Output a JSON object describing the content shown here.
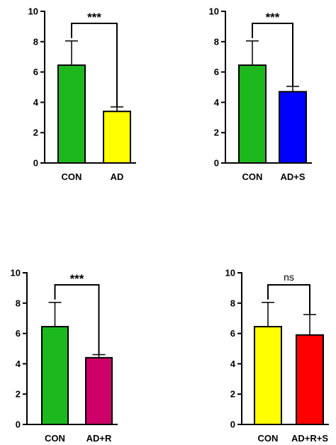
{
  "chart_data": [
    {
      "type": "bar",
      "categories": [
        "CON",
        "AD"
      ],
      "values": [
        6.45,
        3.4
      ],
      "errors": [
        1.6,
        0.3
      ],
      "colors": [
        "#1db81d",
        "#ffff00"
      ],
      "ylim": [
        0,
        10
      ],
      "yticks": [
        "0",
        "2",
        "4",
        "6",
        "8",
        "10"
      ],
      "significance": "***"
    },
    {
      "type": "bar",
      "categories": [
        "CON",
        "AD+S"
      ],
      "values": [
        6.45,
        4.7
      ],
      "errors": [
        1.6,
        0.35
      ],
      "colors": [
        "#1db81d",
        "#0000ff"
      ],
      "ylim": [
        0,
        10
      ],
      "yticks": [
        "0",
        "2",
        "4",
        "6",
        "8",
        "10"
      ],
      "significance": "***"
    },
    {
      "type": "bar",
      "categories": [
        "CON",
        "AD+R"
      ],
      "values": [
        6.45,
        4.4
      ],
      "errors": [
        1.6,
        0.2
      ],
      "colors": [
        "#1db81d",
        "#cc0066"
      ],
      "ylim": [
        0,
        10
      ],
      "yticks": [
        "0",
        "2",
        "4",
        "6",
        "8",
        "10"
      ],
      "significance": "***"
    },
    {
      "type": "bar",
      "categories": [
        "CON",
        "AD+R+S"
      ],
      "values": [
        6.45,
        5.9
      ],
      "errors": [
        1.6,
        1.35
      ],
      "colors": [
        "#ffff00",
        "#ff0000"
      ],
      "ylim": [
        0,
        10
      ],
      "yticks": [
        "0",
        "2",
        "4",
        "6",
        "8",
        "10"
      ],
      "significance": "ns"
    }
  ]
}
